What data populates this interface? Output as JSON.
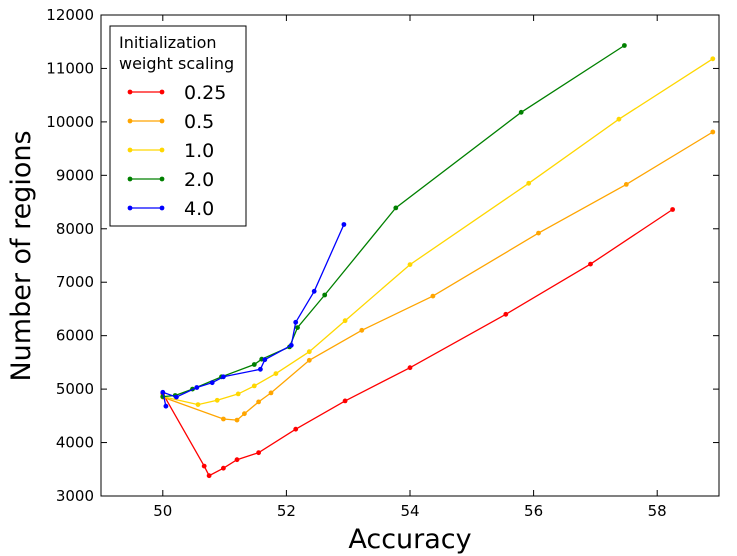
{
  "chart_data": {
    "type": "line",
    "xlabel": "Accuracy",
    "ylabel": "Number of regions",
    "xlim": [
      49,
      59
    ],
    "ylim": [
      3000,
      12000
    ],
    "x_ticks": [
      "50",
      "52",
      "54",
      "56",
      "58"
    ],
    "y_ticks": [
      "3000",
      "4000",
      "5000",
      "6000",
      "7000",
      "8000",
      "9000",
      "10000",
      "11000",
      "12000"
    ],
    "grid": false,
    "legend": {
      "title_line1": "Initialization",
      "title_line2": "weight scaling",
      "placement": "top-left",
      "labels": [
        "0.25",
        "0.5",
        "1.0",
        "2.0",
        "4.0"
      ]
    },
    "series": [
      {
        "name": "0.25",
        "color": "#ff0000",
        "points": [
          [
            50.0,
            4920
          ],
          [
            50.67,
            3560
          ],
          [
            50.75,
            3380
          ],
          [
            50.98,
            3520
          ],
          [
            51.2,
            3680
          ],
          [
            51.55,
            3810
          ],
          [
            52.15,
            4250
          ],
          [
            52.95,
            4780
          ],
          [
            54.0,
            5400
          ],
          [
            55.55,
            6400
          ],
          [
            56.92,
            7340
          ],
          [
            58.25,
            8360
          ]
        ]
      },
      {
        "name": "0.5",
        "color": "#ffa500",
        "points": [
          [
            50.0,
            4850
          ],
          [
            50.98,
            4440
          ],
          [
            51.2,
            4420
          ],
          [
            51.32,
            4540
          ],
          [
            51.55,
            4760
          ],
          [
            51.75,
            4930
          ],
          [
            52.37,
            5540
          ],
          [
            53.22,
            6100
          ],
          [
            54.37,
            6740
          ],
          [
            56.08,
            7920
          ],
          [
            57.5,
            8830
          ],
          [
            58.9,
            9810
          ]
        ]
      },
      {
        "name": "1.0",
        "color": "#ffd700",
        "points": [
          [
            50.0,
            4860
          ],
          [
            50.57,
            4710
          ],
          [
            50.88,
            4790
          ],
          [
            51.22,
            4910
          ],
          [
            51.48,
            5060
          ],
          [
            51.83,
            5290
          ],
          [
            52.37,
            5700
          ],
          [
            52.95,
            6280
          ],
          [
            54.0,
            7330
          ],
          [
            55.92,
            8850
          ],
          [
            57.38,
            10050
          ],
          [
            58.9,
            11180
          ]
        ]
      },
      {
        "name": "2.0",
        "color": "#008000",
        "points": [
          [
            50.0,
            4860
          ],
          [
            50.2,
            4880
          ],
          [
            50.48,
            5000
          ],
          [
            50.95,
            5230
          ],
          [
            51.48,
            5460
          ],
          [
            51.6,
            5560
          ],
          [
            52.05,
            5790
          ],
          [
            52.18,
            6150
          ],
          [
            52.62,
            6760
          ],
          [
            53.77,
            8390
          ],
          [
            55.8,
            10180
          ],
          [
            57.47,
            11430
          ]
        ]
      },
      {
        "name": "4.0",
        "color": "#0000ff",
        "points": [
          [
            50.05,
            4680
          ],
          [
            50.0,
            4940
          ],
          [
            50.22,
            4850
          ],
          [
            50.55,
            5030
          ],
          [
            50.8,
            5120
          ],
          [
            50.98,
            5230
          ],
          [
            51.58,
            5370
          ],
          [
            51.65,
            5550
          ],
          [
            52.08,
            5820
          ],
          [
            52.15,
            6250
          ],
          [
            52.45,
            6830
          ],
          [
            52.93,
            8080
          ]
        ]
      }
    ]
  }
}
